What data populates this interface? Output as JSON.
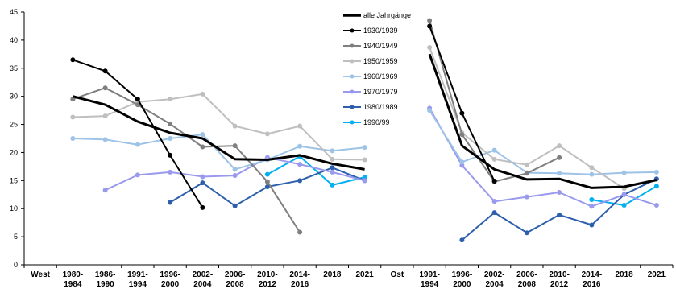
{
  "chart_data": {
    "type": "line",
    "title": "",
    "xlabel": "",
    "ylabel": "",
    "ylim": [
      0,
      45
    ],
    "yticks": [
      0,
      5,
      10,
      15,
      20,
      25,
      30,
      35,
      40,
      45
    ],
    "grid": false,
    "legend_position": "top-center",
    "panels": [
      {
        "label": "West",
        "categories": [
          "1980-\n1984",
          "1986-\n1990",
          "1991-\n1994",
          "1996-\n2000",
          "2002-\n2004",
          "2006-\n2008",
          "2010-\n2012",
          "2014-\n2016",
          "2018",
          "2021"
        ]
      },
      {
        "label": "Ost",
        "categories": [
          "1991-\n1994",
          "1996-\n2000",
          "2002-\n2004",
          "2006-\n2008",
          "2010-\n2012",
          "2014-\n2016",
          "2018",
          "2021"
        ]
      }
    ],
    "series": [
      {
        "name": "alle Jahrgänge",
        "color": "#000000",
        "width": 3,
        "marker": false,
        "west": [
          30,
          28.5,
          25.5,
          23.5,
          22.5,
          18.8,
          18.7,
          19.5,
          18,
          17
        ],
        "ost": [
          37.5,
          21.2,
          17,
          15.2,
          15.3,
          13.7,
          13.9,
          15.1
        ]
      },
      {
        "name": "1930/1939",
        "color": "#000000",
        "width": 2,
        "marker": true,
        "west": [
          36.5,
          34.5,
          29.5,
          19.5,
          10.2,
          null,
          null,
          null,
          null,
          null
        ],
        "ost": [
          42.5,
          27,
          14.9,
          null,
          null,
          null,
          null,
          null
        ]
      },
      {
        "name": "1940/1949",
        "color": "#7f7f7f",
        "width": 2,
        "marker": true,
        "west": [
          29.5,
          31.5,
          28.5,
          25.1,
          21,
          21.2,
          14.8,
          5.8,
          null,
          null
        ],
        "ost": [
          43.5,
          23.2,
          14.8,
          16.3,
          19.1,
          null,
          null,
          null
        ]
      },
      {
        "name": "1950/1959",
        "color": "#bfbfbf",
        "width": 2,
        "marker": true,
        "west": [
          26.3,
          26.5,
          29,
          29.5,
          30.4,
          24.7,
          23.3,
          24.7,
          18.8,
          18.7
        ],
        "ost": [
          38.7,
          23.5,
          18.8,
          17.8,
          21.2,
          17.3,
          13.6,
          null
        ]
      },
      {
        "name": "1960/1969",
        "color": "#9dc3e6",
        "width": 2,
        "marker": true,
        "west": [
          22.5,
          22.3,
          21.4,
          22.5,
          23.2,
          17,
          18.7,
          21.1,
          20.3,
          20.9
        ],
        "ost": [
          27.5,
          18.3,
          20.4,
          16.4,
          16.3,
          16.1,
          16.4,
          16.5
        ]
      },
      {
        "name": "1970/1979",
        "color": "#9999ee",
        "width": 2,
        "marker": true,
        "west": [
          null,
          13.3,
          16,
          16.5,
          15.7,
          15.9,
          19.1,
          17.9,
          16.5,
          15
        ],
        "ost": [
          27.9,
          17.7,
          11.3,
          12.1,
          12.9,
          10.4,
          12.5,
          10.6
        ]
      },
      {
        "name": "1980/1989",
        "color": "#2e5fac",
        "width": 2,
        "marker": true,
        "west": [
          null,
          null,
          null,
          11.1,
          14.6,
          10.5,
          13.9,
          15,
          17.3,
          15
        ],
        "ost": [
          null,
          4.4,
          9.3,
          5.7,
          8.9,
          7.1,
          12.5,
          15.3
        ]
      },
      {
        "name": "1990/99",
        "color": "#00b0f0",
        "width": 2,
        "marker": true,
        "west": [
          null,
          null,
          null,
          null,
          null,
          null,
          16.1,
          19.3,
          14.2,
          15.6
        ],
        "ost": [
          null,
          null,
          null,
          null,
          null,
          11.6,
          10.6,
          14
        ]
      }
    ]
  }
}
